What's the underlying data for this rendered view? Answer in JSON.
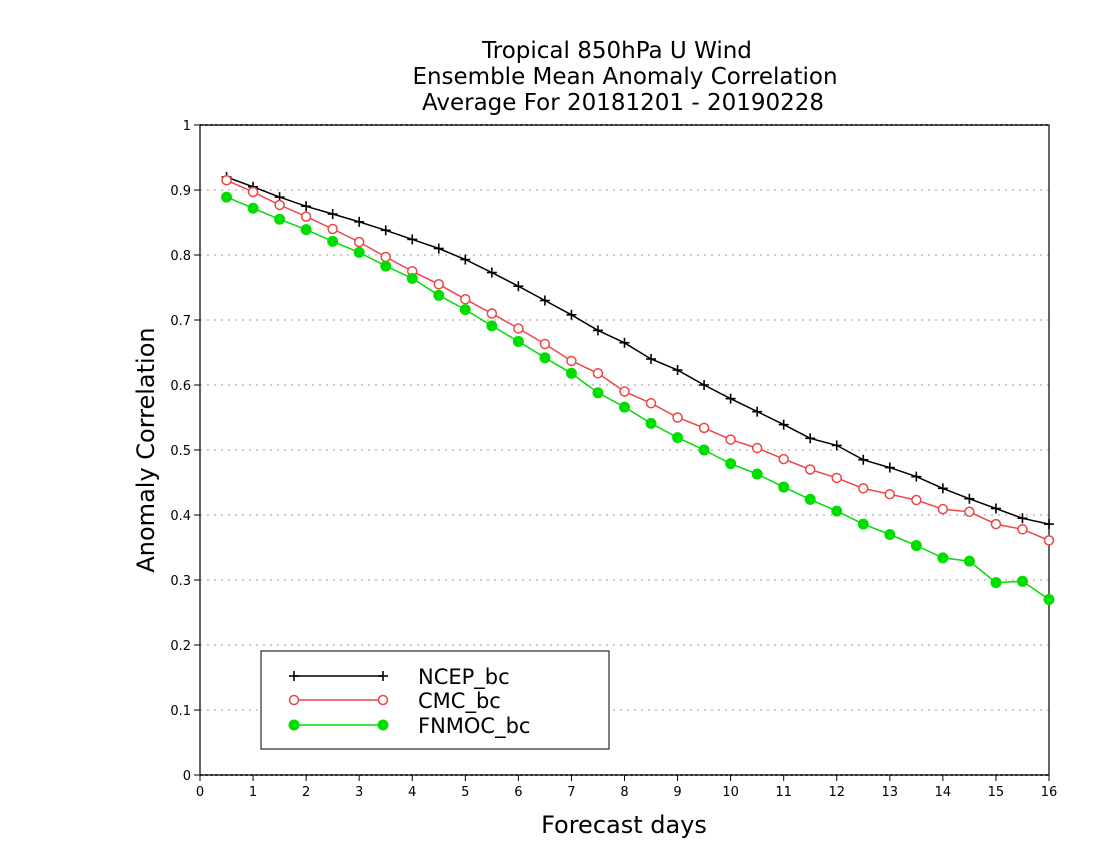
{
  "chart_data": {
    "type": "line",
    "title_lines": [
      "Tropical 850hPa U Wind",
      "Ensemble Mean Anomaly Correlation",
      "Average For 20181201 - 20190228"
    ],
    "xlabel": "Forecast days",
    "ylabel": "Anomaly Correlation",
    "xlim": [
      0,
      16
    ],
    "ylim": [
      0,
      1
    ],
    "xticks": [
      "0",
      "1",
      "2",
      "3",
      "4",
      "5",
      "6",
      "7",
      "8",
      "9",
      "10",
      "11",
      "12",
      "13",
      "14",
      "15",
      "16"
    ],
    "yticks": [
      "0",
      "0.1",
      "0.2",
      "0.3",
      "0.4",
      "0.5",
      "0.6",
      "0.7",
      "0.8",
      "0.9",
      "1"
    ],
    "grid": "dotted horizontal",
    "legend_position": "bottom-left",
    "x": [
      0.5,
      1.0,
      1.5,
      2.0,
      2.5,
      3.0,
      3.5,
      4.0,
      4.5,
      5.0,
      5.5,
      6.0,
      6.5,
      7.0,
      7.5,
      8.0,
      8.5,
      9.0,
      9.5,
      10.0,
      10.5,
      11.0,
      11.5,
      12.0,
      12.5,
      13.0,
      13.5,
      14.0,
      14.5,
      15.0,
      15.5,
      16.0
    ],
    "series": [
      {
        "name": "NCEP_bc",
        "color": "#000000",
        "marker": "plus",
        "values": [
          0.92,
          0.905,
          0.889,
          0.875,
          0.863,
          0.851,
          0.838,
          0.824,
          0.81,
          0.793,
          0.773,
          0.752,
          0.73,
          0.708,
          0.684,
          0.665,
          0.64,
          0.623,
          0.6,
          0.579,
          0.559,
          0.539,
          0.518,
          0.507,
          0.485,
          0.473,
          0.459,
          0.441,
          0.425,
          0.41,
          0.395,
          0.386
        ]
      },
      {
        "name": "CMC_bc",
        "color": "#ee4444",
        "marker": "open-circle",
        "values": [
          0.915,
          0.897,
          0.877,
          0.859,
          0.84,
          0.82,
          0.797,
          0.775,
          0.755,
          0.732,
          0.71,
          0.687,
          0.663,
          0.637,
          0.618,
          0.59,
          0.572,
          0.55,
          0.534,
          0.516,
          0.503,
          0.486,
          0.47,
          0.457,
          0.441,
          0.432,
          0.423,
          0.409,
          0.405,
          0.386,
          0.378,
          0.361
        ]
      },
      {
        "name": "FNMOC_bc",
        "color": "#00dd00",
        "marker": "filled-circle",
        "values": [
          0.889,
          0.872,
          0.855,
          0.839,
          0.821,
          0.804,
          0.783,
          0.764,
          0.738,
          0.716,
          0.691,
          0.667,
          0.642,
          0.618,
          0.588,
          0.566,
          0.541,
          0.519,
          0.5,
          0.479,
          0.463,
          0.443,
          0.424,
          0.406,
          0.386,
          0.37,
          0.353,
          0.334,
          0.329,
          0.296,
          0.298,
          0.27
        ]
      }
    ]
  }
}
